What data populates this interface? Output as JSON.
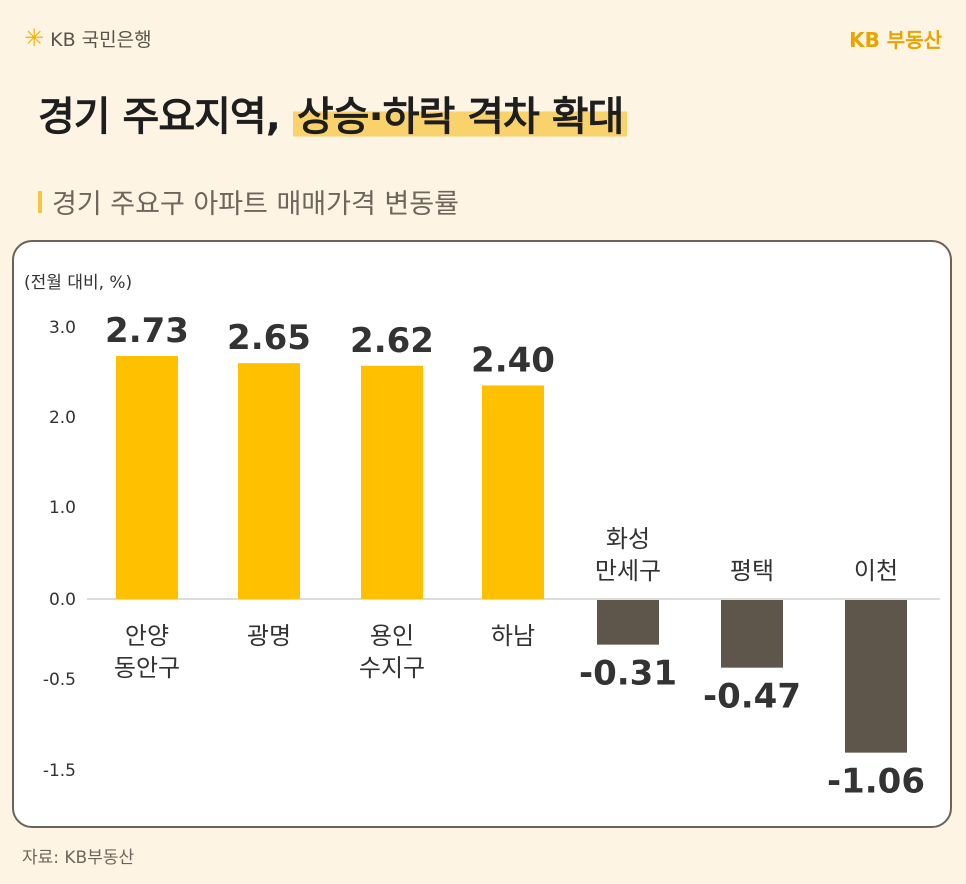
{
  "header": {
    "bank_logo": "KB 국민은행",
    "brand": "KB 부동산"
  },
  "title": {
    "part1": "경기 주요지역,",
    "part2": "상승·하락 격차 확대"
  },
  "subtitle": "경기 주요구 아파트 매매가격 변동률",
  "source": "자료: KB부동산",
  "colors": {
    "positive": "#ffc000",
    "negative": "#5e554b",
    "background": "#fdf4e3",
    "highlight": "#f9d26c"
  },
  "chart_data": {
    "type": "bar",
    "unit_label": "(전월 대비, %)",
    "categories": [
      [
        "안양",
        "동안구"
      ],
      [
        "광명"
      ],
      [
        "용인",
        "수지구"
      ],
      [
        "하남"
      ],
      [
        "화성",
        "만세구"
      ],
      [
        "평택"
      ],
      [
        "이천"
      ]
    ],
    "values": [
      2.73,
      2.65,
      2.62,
      2.4,
      -0.31,
      -0.47,
      -1.06
    ],
    "value_labels": [
      "2.73",
      "2.65",
      "2.62",
      "2.40",
      "-0.31",
      "-0.47",
      "-1.06"
    ],
    "y_ticks": [
      "3.0",
      "2.0",
      "1.0",
      "0.0",
      "-0.5",
      "-1.5"
    ],
    "ylim": [
      -1.5,
      3.0
    ],
    "grid": false
  }
}
